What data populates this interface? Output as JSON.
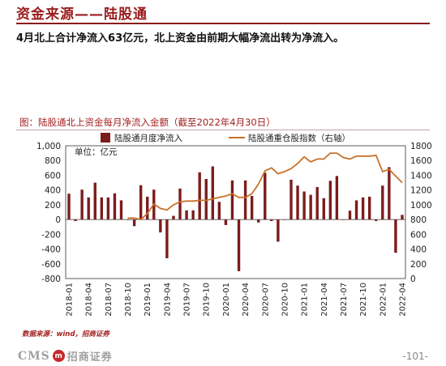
{
  "header": {
    "title": "资金来源——陆股通"
  },
  "summary": "4月北上合计净流入63亿元，北上资金由前期大幅净流出转为净流入。",
  "chart_data": {
    "type": "bar",
    "title": "图：陆股通北上资金每月净流入金额（截至2022年4月30日）",
    "unit_label": "单位：亿元",
    "x": [
      "2018-01",
      "2018-02",
      "2018-03",
      "2018-04",
      "2018-05",
      "2018-06",
      "2018-07",
      "2018-08",
      "2018-09",
      "2018-10",
      "2018-11",
      "2018-12",
      "2019-01",
      "2019-02",
      "2019-03",
      "2019-04",
      "2019-05",
      "2019-06",
      "2019-07",
      "2019-08",
      "2019-09",
      "2019-10",
      "2019-11",
      "2019-12",
      "2020-01",
      "2020-02",
      "2020-03",
      "2020-04",
      "2020-05",
      "2020-06",
      "2020-07",
      "2020-08",
      "2020-09",
      "2020-10",
      "2020-11",
      "2020-12",
      "2021-01",
      "2021-02",
      "2021-03",
      "2021-04",
      "2021-05",
      "2021-06",
      "2021-07",
      "2021-08",
      "2021-09",
      "2021-10",
      "2021-11",
      "2021-12",
      "2022-01",
      "2022-02",
      "2022-03",
      "2022-04"
    ],
    "x_tick_labels": [
      "2018-01",
      "2018-04",
      "2018-07",
      "2018-10",
      "2019-01",
      "2019-04",
      "2019-07",
      "2019-10",
      "2020-01",
      "2020-04",
      "2020-07",
      "2020-10",
      "2021-01",
      "2021-04",
      "2021-07",
      "2021-10",
      "2022-01",
      "2022-04"
    ],
    "y_left": {
      "ticks": [
        "1,000",
        "800",
        "600",
        "400",
        "200",
        "0",
        "-200",
        "-400",
        "-600",
        "-800"
      ],
      "lim": [
        -800,
        1000
      ]
    },
    "y_right": {
      "ticks": [
        "1800",
        "1600",
        "1400",
        "1200",
        "1000",
        "800",
        "600",
        "400",
        "200",
        "0"
      ],
      "lim": [
        0,
        1800
      ]
    },
    "series": [
      {
        "name": "陆股通月度净流入",
        "kind": "bar",
        "color": "#7b1c1c",
        "axis": "left",
        "values": [
          350,
          -20,
          405,
          300,
          500,
          300,
          300,
          355,
          260,
          0,
          -90,
          465,
          310,
          405,
          -175,
          -525,
          50,
          420,
          125,
          125,
          640,
          550,
          720,
          240,
          -75,
          530,
          -700,
          530,
          320,
          -40,
          635,
          -20,
          -300,
          0,
          540,
          460,
          380,
          335,
          440,
          290,
          525,
          590,
          0,
          120,
          260,
          300,
          310,
          -20,
          460,
          710,
          -450,
          63
        ]
      },
      {
        "name": "陆股通重仓股指数（右轴）",
        "kind": "line",
        "color": "#c8722a",
        "axis": "right",
        "values": [
          null,
          null,
          null,
          null,
          null,
          null,
          null,
          null,
          null,
          820,
          820,
          800,
          880,
          1010,
          950,
          930,
          1000,
          1040,
          1050,
          1050,
          1060,
          1060,
          1080,
          1100,
          1120,
          1150,
          1100,
          1100,
          1150,
          1280,
          1460,
          1500,
          1420,
          1450,
          1490,
          1560,
          1650,
          1580,
          1620,
          1620,
          1700,
          1700,
          1640,
          1620,
          1660,
          1660,
          1660,
          1670,
          1450,
          1480,
          1390,
          1300
        ]
      }
    ],
    "legend": "top-left",
    "grid": false
  },
  "source": "数据来源：wind，招商证券",
  "footer": {
    "logo_text": "CMS",
    "logo_mark": "m",
    "logo_cn": "招商证券",
    "page": "-101-"
  }
}
